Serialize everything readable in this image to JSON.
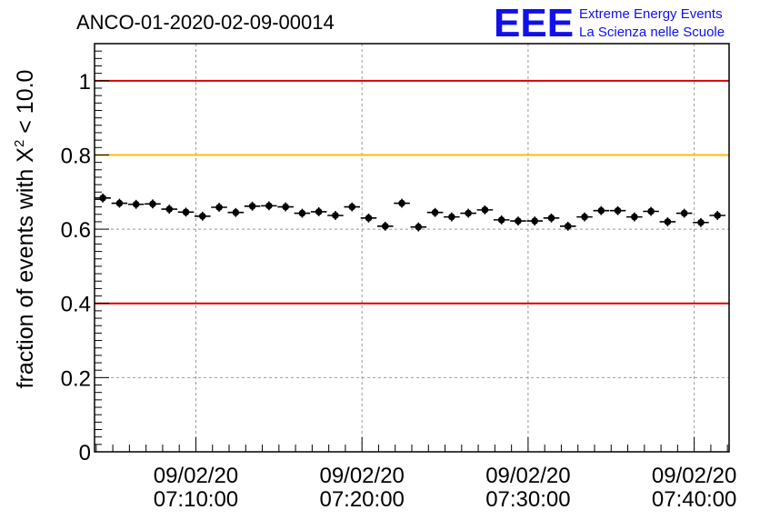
{
  "header": {
    "run_id": "ANCO-01-2020-02-09-00014",
    "logo_mark": "EEE",
    "logo_line1": "Extreme Energy Events",
    "logo_line2": "La Scienza nelle Scuole",
    "logo_color": "#1010ee"
  },
  "chart_data": {
    "type": "scatter",
    "title": "ANCO-01-2020-02-09-00014",
    "ylabel_prefix": "fraction of events with ",
    "ylabel_symbol": "X",
    "ylabel_sup": "2",
    "ylabel_suffix": " < 10.0",
    "xlabel": "",
    "x_unit": "minutes after 07:00:00 on 09/02/20",
    "xlim": [
      3.9,
      42.1
    ],
    "ylim": [
      0,
      1.1
    ],
    "grid": true,
    "yticks": [
      {
        "value": 0,
        "label": "0"
      },
      {
        "value": 0.2,
        "label": "0.2"
      },
      {
        "value": 0.4,
        "label": "0.4"
      },
      {
        "value": 0.6,
        "label": "0.6"
      },
      {
        "value": 0.8,
        "label": "0.8"
      },
      {
        "value": 1,
        "label": "1"
      }
    ],
    "xticks": [
      {
        "value": 10,
        "date": "09/02/20",
        "time": "07:10:00"
      },
      {
        "value": 20,
        "date": "09/02/20",
        "time": "07:20:00"
      },
      {
        "value": 30,
        "date": "09/02/20",
        "time": "07:30:00"
      },
      {
        "value": 40,
        "date": "09/02/20",
        "time": "07:40:00"
      }
    ],
    "thresholds": [
      {
        "value": 1.0,
        "color": "#dd0000"
      },
      {
        "value": 0.8,
        "color": "#ffbb00"
      },
      {
        "value": 0.4,
        "color": "#dd0000"
      }
    ],
    "bin_halfwidth": 0.48,
    "y_error": 0.012,
    "marker_color": "#000000",
    "points": [
      {
        "x": 4.4,
        "y": 0.684
      },
      {
        "x": 5.4,
        "y": 0.67
      },
      {
        "x": 6.4,
        "y": 0.667
      },
      {
        "x": 7.4,
        "y": 0.668
      },
      {
        "x": 8.4,
        "y": 0.654
      },
      {
        "x": 9.4,
        "y": 0.646
      },
      {
        "x": 10.4,
        "y": 0.635
      },
      {
        "x": 11.4,
        "y": 0.659
      },
      {
        "x": 12.4,
        "y": 0.645
      },
      {
        "x": 13.4,
        "y": 0.662
      },
      {
        "x": 14.4,
        "y": 0.663
      },
      {
        "x": 15.4,
        "y": 0.66
      },
      {
        "x": 16.4,
        "y": 0.643
      },
      {
        "x": 17.4,
        "y": 0.647
      },
      {
        "x": 18.4,
        "y": 0.637
      },
      {
        "x": 19.4,
        "y": 0.66
      },
      {
        "x": 20.4,
        "y": 0.63
      },
      {
        "x": 21.4,
        "y": 0.608
      },
      {
        "x": 22.4,
        "y": 0.67
      },
      {
        "x": 23.4,
        "y": 0.606
      },
      {
        "x": 24.4,
        "y": 0.645
      },
      {
        "x": 25.4,
        "y": 0.633
      },
      {
        "x": 26.4,
        "y": 0.643
      },
      {
        "x": 27.4,
        "y": 0.652
      },
      {
        "x": 28.4,
        "y": 0.625
      },
      {
        "x": 29.4,
        "y": 0.622
      },
      {
        "x": 30.4,
        "y": 0.622
      },
      {
        "x": 31.4,
        "y": 0.63
      },
      {
        "x": 32.4,
        "y": 0.608
      },
      {
        "x": 33.4,
        "y": 0.633
      },
      {
        "x": 34.4,
        "y": 0.65
      },
      {
        "x": 35.4,
        "y": 0.65
      },
      {
        "x": 36.4,
        "y": 0.633
      },
      {
        "x": 37.4,
        "y": 0.648
      },
      {
        "x": 38.4,
        "y": 0.62
      },
      {
        "x": 39.4,
        "y": 0.643
      },
      {
        "x": 40.4,
        "y": 0.618
      },
      {
        "x": 41.4,
        "y": 0.637
      }
    ]
  }
}
